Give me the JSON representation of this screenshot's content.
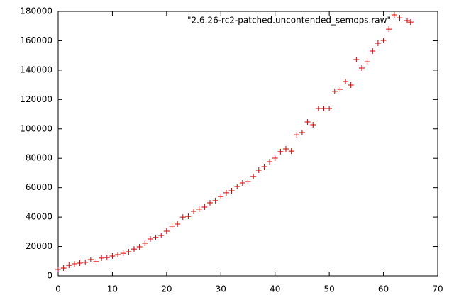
{
  "chart_data": {
    "type": "scatter",
    "series": [
      {
        "name": "\"2.6.26-rc2-patched.uncontended_semops.raw\"",
        "color": "#cc0000",
        "x": [
          0,
          1,
          2,
          3,
          4,
          5,
          6,
          7,
          8,
          9,
          10,
          11,
          12,
          13,
          14,
          15,
          16,
          17,
          18,
          19,
          20,
          21,
          22,
          23,
          24,
          25,
          26,
          27,
          28,
          29,
          30,
          31,
          32,
          33,
          34,
          35,
          36,
          37,
          38,
          39,
          40,
          41,
          42,
          43,
          44,
          45,
          46,
          47,
          48,
          49,
          50,
          51,
          52,
          53,
          54,
          55,
          56,
          57,
          58,
          59,
          60,
          61,
          62,
          63,
          65
        ],
        "values": [
          4300,
          5300,
          7200,
          8200,
          8700,
          9200,
          11100,
          9700,
          12100,
          12500,
          13500,
          14500,
          15400,
          16400,
          18300,
          19800,
          22200,
          25100,
          26100,
          27500,
          30400,
          33800,
          35200,
          40000,
          40500,
          43900,
          45400,
          46800,
          49700,
          51200,
          54000,
          56500,
          57900,
          60800,
          63200,
          64200,
          67600,
          71900,
          74300,
          77700,
          80100,
          84500,
          86400,
          84900,
          96000,
          97500,
          104700,
          102800,
          113900,
          113900,
          113900,
          125500,
          126900,
          132200,
          129800,
          147200,
          141400,
          145700,
          153000,
          158300,
          160200,
          167900,
          177600,
          175600,
          172700
        ]
      }
    ],
    "xlim": [
      0,
      70
    ],
    "xticks": [
      0,
      10,
      20,
      30,
      40,
      50,
      60,
      70
    ],
    "ylim": [
      0,
      180000
    ],
    "yticks": [
      0,
      20000,
      40000,
      60000,
      80000,
      100000,
      120000,
      140000,
      160000,
      180000
    ],
    "grid": false,
    "legend": "top-right"
  }
}
